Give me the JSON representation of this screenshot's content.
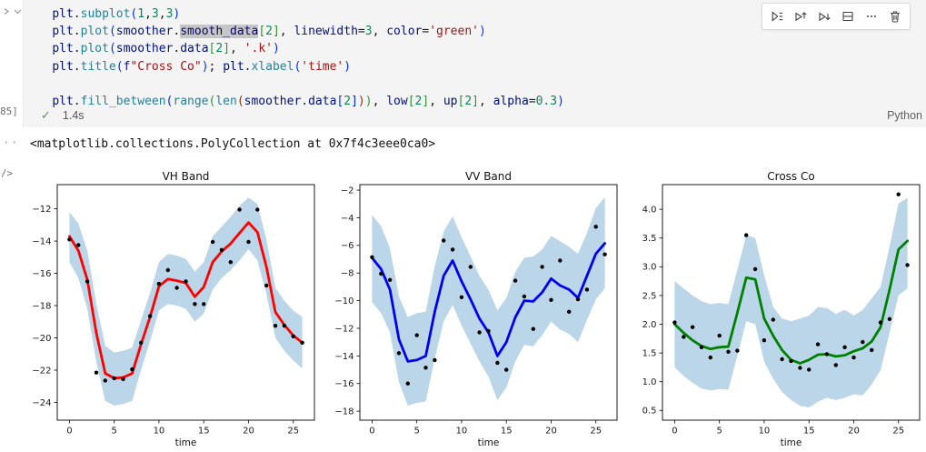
{
  "cell": {
    "exec_count_label": "85]",
    "status": {
      "duration": "1.4s",
      "language_label": "Python"
    },
    "toolbar_buttons": [
      "run-by-line",
      "execute-above",
      "execute-below",
      "split-cell",
      "more-actions",
      "delete-cell"
    ],
    "fold_icons": [
      "chevron-right",
      "chevron-down"
    ],
    "code_lines": [
      [
        [
          "ws",
          "    "
        ],
        [
          "v",
          "plt"
        ],
        [
          "p",
          "."
        ],
        [
          "fn",
          "subplot"
        ],
        [
          "b1",
          "("
        ],
        [
          "num",
          "1"
        ],
        [
          "p",
          ","
        ],
        [
          "num",
          "3"
        ],
        [
          "p",
          ","
        ],
        [
          "num",
          "3"
        ],
        [
          "b1",
          ")"
        ]
      ],
      [
        [
          "ws",
          "    "
        ],
        [
          "v",
          "plt"
        ],
        [
          "p",
          "."
        ],
        [
          "fn",
          "plot"
        ],
        [
          "b1",
          "("
        ],
        [
          "v",
          "smoother"
        ],
        [
          "p",
          "."
        ],
        [
          "sel",
          "smooth_data"
        ],
        [
          "b2",
          "["
        ],
        [
          "num",
          "2"
        ],
        [
          "b2",
          "]"
        ],
        [
          "p",
          ", "
        ],
        [
          "v",
          "linewidth"
        ],
        [
          "op",
          "="
        ],
        [
          "num",
          "3"
        ],
        [
          "p",
          ", "
        ],
        [
          "v",
          "color"
        ],
        [
          "op",
          "="
        ],
        [
          "str",
          "'green'"
        ],
        [
          "b1",
          ")"
        ]
      ],
      [
        [
          "ws",
          "    "
        ],
        [
          "v",
          "plt"
        ],
        [
          "p",
          "."
        ],
        [
          "fn",
          "plot"
        ],
        [
          "b1",
          "("
        ],
        [
          "v",
          "smoother"
        ],
        [
          "p",
          "."
        ],
        [
          "v",
          "data"
        ],
        [
          "b2",
          "["
        ],
        [
          "num",
          "2"
        ],
        [
          "b2",
          "]"
        ],
        [
          "p",
          ", "
        ],
        [
          "str",
          "'.k'"
        ],
        [
          "b1",
          ")"
        ]
      ],
      [
        [
          "ws",
          "    "
        ],
        [
          "v",
          "plt"
        ],
        [
          "p",
          "."
        ],
        [
          "fn",
          "title"
        ],
        [
          "b1",
          "("
        ],
        [
          "kw",
          "f"
        ],
        [
          "str",
          "\"Cross Co\""
        ],
        [
          "b1",
          ")"
        ],
        [
          "p",
          "; "
        ],
        [
          "v",
          "plt"
        ],
        [
          "p",
          "."
        ],
        [
          "fn",
          "xlabel"
        ],
        [
          "b1",
          "("
        ],
        [
          "str",
          "'time'"
        ],
        [
          "b1",
          ")"
        ]
      ],
      [],
      [
        [
          "ws",
          "    "
        ],
        [
          "v",
          "plt"
        ],
        [
          "p",
          "."
        ],
        [
          "fn",
          "fill_between"
        ],
        [
          "b1",
          "("
        ],
        [
          "fn",
          "range"
        ],
        [
          "b2",
          "("
        ],
        [
          "fn",
          "len"
        ],
        [
          "b3",
          "("
        ],
        [
          "v",
          "smoother"
        ],
        [
          "p",
          "."
        ],
        [
          "v",
          "data"
        ],
        [
          "b1",
          "["
        ],
        [
          "num",
          "2"
        ],
        [
          "b1",
          "]"
        ],
        [
          "b3",
          ")"
        ],
        [
          "b2",
          ")"
        ],
        [
          "p",
          ", "
        ],
        [
          "v",
          "low"
        ],
        [
          "b2",
          "["
        ],
        [
          "num",
          "2"
        ],
        [
          "b2",
          "]"
        ],
        [
          "p",
          ", "
        ],
        [
          "v",
          "up"
        ],
        [
          "b2",
          "["
        ],
        [
          "num",
          "2"
        ],
        [
          "b2",
          "]"
        ],
        [
          "p",
          ", "
        ],
        [
          "v",
          "alpha"
        ],
        [
          "op",
          "="
        ],
        [
          "num",
          "0.3"
        ],
        [
          "b1",
          ")"
        ]
      ]
    ]
  },
  "output": {
    "repr_text": "<matplotlib.collections.PolyCollection at 0x7f4c3eee0ca0>",
    "gutter_dots": "··",
    "mime_glyph": "/>"
  },
  "chart_data": [
    {
      "type": "line",
      "title": "VH Band",
      "xlabel": "time",
      "line_color": "#ff0000",
      "point_color": "#000000",
      "band_color": "#1f77b4",
      "band_alpha": 0.3,
      "xlim": [
        -1.36,
        27.36
      ],
      "ylim": [
        -25.1,
        -10.5
      ],
      "xticks": [
        0,
        5,
        10,
        15,
        20,
        25
      ],
      "ytick_vals": [
        -12,
        -14,
        -16,
        -18,
        -20,
        -22,
        -24
      ],
      "ytick_labels": [
        "−12",
        "−14",
        "−16",
        "−18",
        "−20",
        "−22",
        "−24"
      ],
      "x": [
        0,
        1,
        2,
        3,
        4,
        5,
        6,
        7,
        8,
        9,
        10,
        11,
        12,
        13,
        14,
        15,
        16,
        17,
        18,
        19,
        20,
        21,
        22,
        23,
        24,
        25,
        26
      ],
      "smooth": [
        -13.7,
        -14.6,
        -16.4,
        -19.7,
        -22.2,
        -22.5,
        -22.45,
        -22.2,
        -20.4,
        -18.7,
        -16.8,
        -16.35,
        -16.45,
        -16.6,
        -17.45,
        -16.85,
        -15.3,
        -14.65,
        -14.15,
        -13.5,
        -12.85,
        -13.45,
        -15.6,
        -18.4,
        -19.2,
        -19.85,
        -20.3
      ],
      "points": [
        -13.9,
        -14.25,
        -16.5,
        -22.15,
        -22.65,
        -22.5,
        -22.55,
        -21.95,
        -20.3,
        -18.65,
        -16.65,
        -15.8,
        -16.9,
        -16.5,
        -17.9,
        -17.9,
        -14.05,
        -14.55,
        -15.3,
        -12.05,
        -14.05,
        -12.05,
        -16.75,
        -19.25,
        -19.25,
        -19.9,
        -20.3
      ],
      "band_up": [
        -12.2,
        -12.9,
        -14.6,
        -17.9,
        -20.5,
        -20.9,
        -20.8,
        -20.6,
        -18.9,
        -17.2,
        -15.3,
        -14.8,
        -14.9,
        -15.1,
        -15.9,
        -15.3,
        -13.7,
        -13.1,
        -12.5,
        -11.8,
        -11.3,
        -11.7,
        -13.9,
        -16.9,
        -17.7,
        -18.3,
        -18.7
      ],
      "band_low": [
        -15.3,
        -16.3,
        -18.2,
        -21.5,
        -23.9,
        -24.2,
        -24.1,
        -23.9,
        -22.0,
        -20.2,
        -18.3,
        -17.9,
        -18.0,
        -18.2,
        -19.0,
        -18.5,
        -17.0,
        -16.3,
        -15.8,
        -15.2,
        -14.5,
        -15.2,
        -17.3,
        -20.0,
        -20.8,
        -21.4,
        -21.9
      ]
    },
    {
      "type": "line",
      "title": "VV Band",
      "xlabel": "time",
      "line_color": "#0000ee",
      "point_color": "#000000",
      "band_color": "#1f77b4",
      "band_alpha": 0.3,
      "xlim": [
        -1.36,
        27.36
      ],
      "ylim": [
        -18.65,
        -1.6
      ],
      "xticks": [
        0,
        5,
        10,
        15,
        20,
        25
      ],
      "ytick_vals": [
        -2,
        -4,
        -6,
        -8,
        -10,
        -12,
        -14,
        -16,
        -18
      ],
      "ytick_labels": [
        "−2",
        "−4",
        "−6",
        "−8",
        "−10",
        "−12",
        "−14",
        "−16",
        "−18"
      ],
      "x": [
        0,
        1,
        2,
        3,
        4,
        5,
        6,
        7,
        8,
        9,
        10,
        11,
        12,
        13,
        14,
        15,
        16,
        17,
        18,
        19,
        20,
        21,
        22,
        23,
        24,
        25,
        26
      ],
      "smooth": [
        -6.9,
        -7.7,
        -9.2,
        -12.8,
        -14.4,
        -14.3,
        -14.0,
        -10.8,
        -8.2,
        -7.1,
        -8.6,
        -9.9,
        -11.3,
        -12.3,
        -14.0,
        -13.0,
        -11.2,
        -10.0,
        -10.05,
        -9.4,
        -8.4,
        -8.9,
        -9.2,
        -9.8,
        -8.2,
        -6.6,
        -5.85
      ],
      "points": [
        -6.85,
        -8.05,
        -8.5,
        -13.8,
        -16.0,
        -12.5,
        -14.85,
        -14.3,
        -5.65,
        -6.3,
        -9.75,
        -7.55,
        -12.3,
        -12.2,
        -14.5,
        -15.0,
        -8.55,
        -9.7,
        -12.05,
        -7.55,
        -9.95,
        -7.1,
        -10.8,
        -9.9,
        -9.2,
        -4.65,
        -6.65
      ],
      "band_up": [
        -3.8,
        -4.6,
        -6.2,
        -9.7,
        -11.2,
        -10.9,
        -10.8,
        -7.5,
        -5.0,
        -3.9,
        -5.4,
        -6.8,
        -8.2,
        -9.2,
        -10.7,
        -9.8,
        -7.9,
        -6.9,
        -6.8,
        -6.3,
        -5.3,
        -5.7,
        -6.1,
        -6.6,
        -5.1,
        -3.3,
        -2.5
      ],
      "band_low": [
        -10.1,
        -10.9,
        -12.3,
        -15.9,
        -17.6,
        -17.4,
        -17.3,
        -14.2,
        -11.5,
        -10.3,
        -11.8,
        -13.1,
        -14.4,
        -15.5,
        -17.2,
        -16.3,
        -14.4,
        -13.2,
        -13.3,
        -12.5,
        -11.5,
        -12.1,
        -12.4,
        -13.0,
        -11.4,
        -9.9,
        -9.1
      ]
    },
    {
      "type": "line",
      "title": "Cross Co",
      "xlabel": "time",
      "line_color": "#008000",
      "point_color": "#000000",
      "band_color": "#1f77b4",
      "band_alpha": 0.3,
      "xlim": [
        -1.36,
        27.36
      ],
      "ylim": [
        0.33,
        4.43
      ],
      "xticks": [
        0,
        5,
        10,
        15,
        20,
        25
      ],
      "ytick_vals": [
        4.0,
        3.5,
        3.0,
        2.5,
        2.0,
        1.5,
        1.0,
        0.5
      ],
      "ytick_labels": [
        "4.0",
        "3.5",
        "3.0",
        "2.5",
        "2.0",
        "1.5",
        "1.0",
        "0.5"
      ],
      "x": [
        0,
        1,
        2,
        3,
        4,
        5,
        6,
        7,
        8,
        9,
        10,
        11,
        12,
        13,
        14,
        15,
        16,
        17,
        18,
        19,
        20,
        21,
        22,
        23,
        24,
        25,
        26
      ],
      "smooth": [
        2.0,
        1.85,
        1.72,
        1.62,
        1.57,
        1.6,
        1.61,
        2.2,
        2.81,
        2.78,
        2.1,
        1.8,
        1.55,
        1.38,
        1.32,
        1.38,
        1.47,
        1.48,
        1.44,
        1.46,
        1.53,
        1.58,
        1.7,
        1.95,
        2.6,
        3.3,
        3.45
      ],
      "points": [
        2.03,
        1.78,
        1.95,
        1.6,
        1.42,
        1.8,
        1.52,
        1.54,
        3.55,
        2.96,
        1.72,
        2.08,
        1.39,
        1.36,
        1.24,
        1.21,
        1.65,
        1.48,
        1.29,
        1.6,
        1.42,
        1.69,
        1.55,
        2.03,
        2.09,
        4.26,
        3.03
      ],
      "band_up": [
        2.75,
        2.62,
        2.5,
        2.4,
        2.35,
        2.37,
        2.35,
        2.95,
        3.55,
        3.5,
        2.85,
        2.3,
        2.1,
        2.05,
        2.1,
        2.15,
        2.3,
        2.28,
        2.18,
        2.25,
        2.15,
        2.25,
        2.45,
        2.65,
        3.35,
        4.1,
        4.2
      ],
      "band_low": [
        1.25,
        1.1,
        0.98,
        0.88,
        0.85,
        0.87,
        0.86,
        1.45,
        2.05,
        2.0,
        1.35,
        1.05,
        0.82,
        0.68,
        0.58,
        0.55,
        0.65,
        0.72,
        0.68,
        0.72,
        0.78,
        0.76,
        0.95,
        1.2,
        1.85,
        2.5,
        2.62
      ]
    }
  ]
}
